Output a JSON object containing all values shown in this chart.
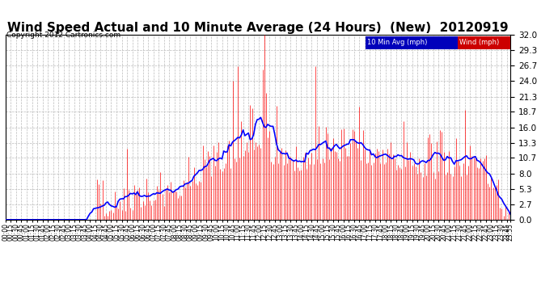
{
  "title": "Wind Speed Actual and 10 Minute Average (24 Hours)  (New)  20120919",
  "copyright": "Copyright 2012 Cartronics.com",
  "legend_labels": [
    "10 Min Avg (mph)",
    "Wind (mph)"
  ],
  "y_ticks": [
    0.0,
    2.7,
    5.3,
    8.0,
    10.7,
    13.3,
    16.0,
    18.7,
    21.3,
    24.0,
    26.7,
    29.3,
    32.0
  ],
  "y_max": 32.0,
  "y_min": 0.0,
  "background_color": "#ffffff",
  "grid_color": "#bbbbbb",
  "bar_color": "#ff0000",
  "line_color": "#0000ff",
  "title_fontsize": 11,
  "num_points": 288
}
